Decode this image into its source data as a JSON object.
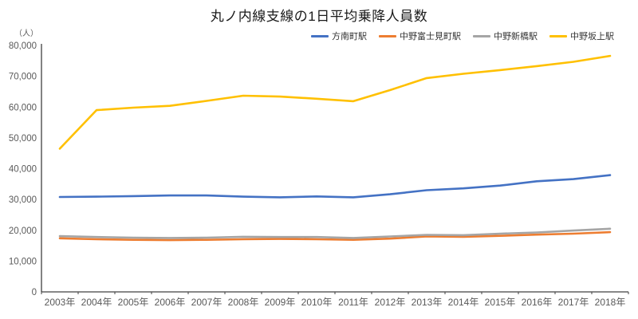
{
  "chart_data": {
    "type": "line",
    "title": "丸ノ内線支線の1日平均乗降人員数",
    "y_unit_label": "（人）",
    "categories": [
      "2003年",
      "2004年",
      "2005年",
      "2006年",
      "2007年",
      "2008年",
      "2009年",
      "2010年",
      "2011年",
      "2012年",
      "2013年",
      "2014年",
      "2015年",
      "2016年",
      "2017年",
      "2018年"
    ],
    "series": [
      {
        "name": "方南町駅",
        "color": "#4472C4",
        "values": [
          30800,
          30900,
          31100,
          31300,
          31300,
          30900,
          30700,
          31000,
          30700,
          31700,
          33000,
          33600,
          34500,
          35900,
          36600,
          37900
        ]
      },
      {
        "name": "中野富士見町駅",
        "color": "#ED7D31",
        "values": [
          17400,
          17100,
          16900,
          16800,
          16900,
          17100,
          17200,
          17100,
          16900,
          17300,
          18000,
          17900,
          18200,
          18600,
          18900,
          19400
        ]
      },
      {
        "name": "中野新橋駅",
        "color": "#A5A5A5",
        "values": [
          18100,
          17800,
          17600,
          17500,
          17600,
          17900,
          17800,
          17800,
          17500,
          18000,
          18500,
          18400,
          18900,
          19300,
          19900,
          20500
        ]
      },
      {
        "name": "中野坂上駅",
        "color": "#FFC000",
        "values": [
          46500,
          59000,
          59800,
          60400,
          62000,
          63700,
          63400,
          62700,
          61900,
          65500,
          69400,
          70800,
          72000,
          73300,
          74700,
          76600
        ]
      }
    ],
    "ylim": [
      0,
      80000
    ],
    "ytick_interval": 10000,
    "grid": false,
    "legend_position": "top-right",
    "axis_color": "#404040",
    "label_color": "#595959"
  }
}
